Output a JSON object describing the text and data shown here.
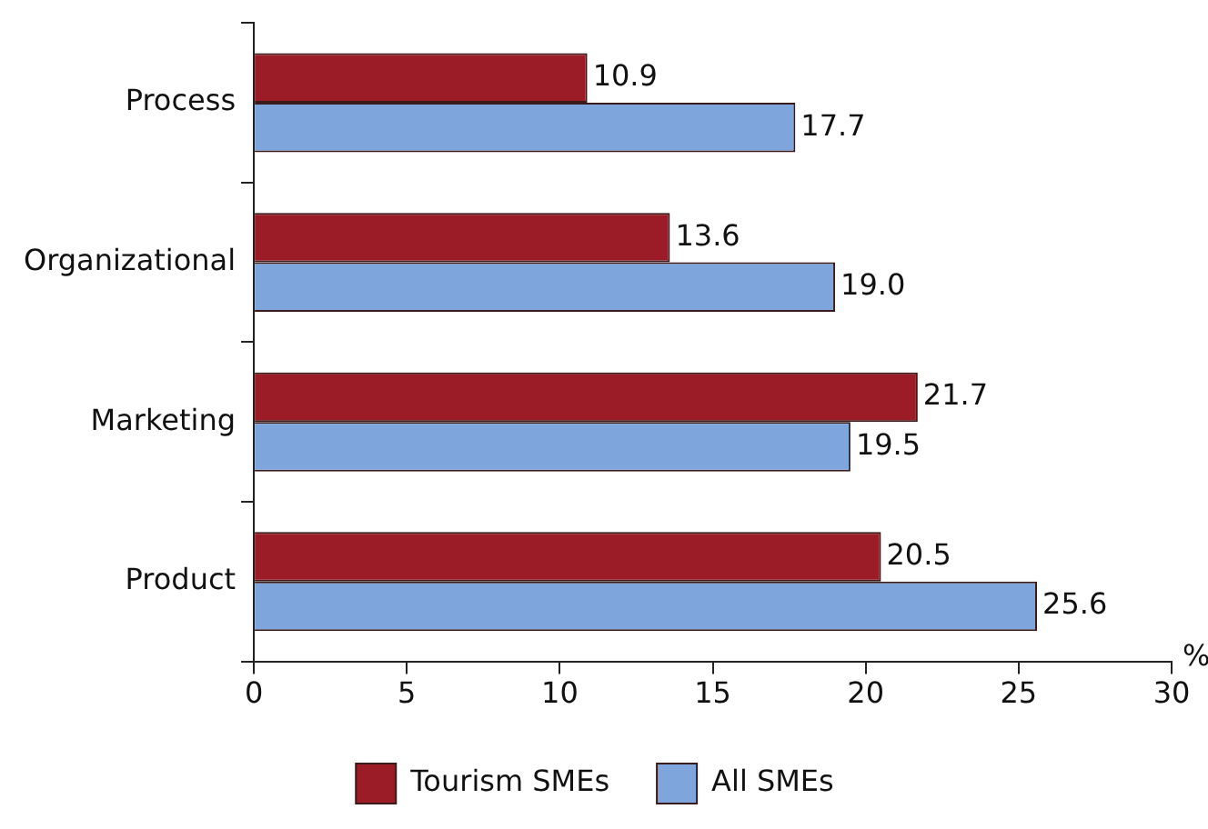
{
  "chart_data": {
    "type": "bar",
    "orientation": "horizontal",
    "categories": [
      "Process",
      "Organizational",
      "Marketing",
      "Product"
    ],
    "series": [
      {
        "name": "Tourism SMEs",
        "color": "#9b1b26",
        "values": [
          10.9,
          13.6,
          21.7,
          20.5
        ],
        "value_labels": [
          "10.9",
          "13.6",
          "21.7",
          "20.5"
        ]
      },
      {
        "name": "All SMEs",
        "color": "#7ea6dc",
        "values": [
          17.7,
          19.0,
          19.5,
          25.6
        ],
        "value_labels": [
          "17.7",
          "19.0",
          "19.5",
          "25.6"
        ]
      }
    ],
    "xlabel": "%",
    "xlim": [
      0,
      30
    ],
    "xticks": [
      0,
      5,
      10,
      15,
      20,
      25,
      30
    ],
    "grid": false,
    "legend": "bottom"
  }
}
